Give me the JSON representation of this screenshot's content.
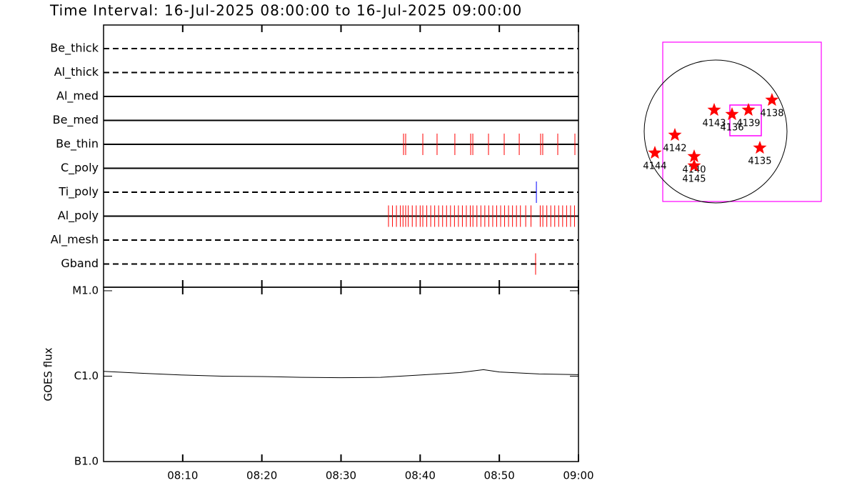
{
  "chart_data": [
    {
      "type": "timeline",
      "title": "Time Interval: 16-Jul-2025 08:00:00 to 16-Jul-2025 09:00:00",
      "xlim": [
        "08:00",
        "09:00"
      ],
      "rows": [
        {
          "name": "Be_thick",
          "line_style": "dashed",
          "color": "#ff0000",
          "events": []
        },
        {
          "name": "Al_thick",
          "line_style": "dashed",
          "color": "#ff0000",
          "events": []
        },
        {
          "name": "Al_med",
          "line_style": "solid",
          "color": "#ff0000",
          "events": []
        },
        {
          "name": "Be_med",
          "line_style": "solid",
          "color": "#ff0000",
          "events": []
        },
        {
          "name": "Be_thin",
          "line_style": "solid",
          "color": "#ff0000",
          "events": [
            "08:37:54",
            "08:38:10",
            "08:40:20",
            "08:42:08",
            "08:44:23",
            "08:46:23",
            "08:46:39",
            "08:48:38",
            "08:50:37",
            "08:52:31",
            "08:55:13",
            "08:55:29",
            "08:57:23",
            "08:59:33"
          ]
        },
        {
          "name": "C_poly",
          "line_style": "solid",
          "color": "#ff0000",
          "events": []
        },
        {
          "name": "Ti_poly",
          "line_style": "dashed",
          "color": "#0000ff",
          "events": [
            "08:54:41"
          ]
        },
        {
          "name": "Al_poly",
          "line_style": "solid",
          "color": "#ff0000",
          "events": [
            "08:36:00",
            "08:36:30",
            "08:37:00",
            "08:37:30",
            "08:37:50",
            "08:38:10",
            "08:38:30",
            "08:39:00",
            "08:39:30",
            "08:40:00",
            "08:40:20",
            "08:40:50",
            "08:41:20",
            "08:41:50",
            "08:42:20",
            "08:42:50",
            "08:43:20",
            "08:43:50",
            "08:44:20",
            "08:44:50",
            "08:45:20",
            "08:45:50",
            "08:46:20",
            "08:46:40",
            "08:47:10",
            "08:47:40",
            "08:48:10",
            "08:48:40",
            "08:49:10",
            "08:49:40",
            "08:50:10",
            "08:50:40",
            "08:51:10",
            "08:51:40",
            "08:52:10",
            "08:52:40",
            "08:53:20",
            "08:54:00",
            "08:55:10",
            "08:55:30",
            "08:56:00",
            "08:56:30",
            "08:57:00",
            "08:57:30",
            "08:58:00",
            "08:58:30",
            "08:59:00",
            "08:59:30"
          ]
        },
        {
          "name": "Al_mesh",
          "line_style": "dashed",
          "color": "#ff0000",
          "events": []
        },
        {
          "name": "Gband",
          "line_style": "dashed",
          "color": "#ff0000",
          "events": [
            "08:54:35"
          ]
        }
      ]
    },
    {
      "type": "line",
      "y_label": "GOES flux",
      "log_scale": true,
      "color": "#000000",
      "x": [
        "08:00",
        "08:05",
        "08:10",
        "08:15",
        "08:20",
        "08:25",
        "08:30",
        "08:35",
        "08:40",
        "08:45",
        "08:48",
        "08:50",
        "08:55",
        "09:00"
      ],
      "values": [
        1.14e-06,
        1.08e-06,
        1.03e-06,
        1e-06,
        9.9e-07,
        9.7e-07,
        9.6e-07,
        9.7e-07,
        1.03e-06,
        1.1e-06,
        1.19e-06,
        1.12e-06,
        1.06e-06,
        1.04e-06
      ],
      "xlim": [
        "08:00",
        "09:00"
      ],
      "xticks": [
        "08:10",
        "08:20",
        "08:30",
        "08:40",
        "08:50",
        "09:00"
      ],
      "ylim": [
        1e-07,
        1.1e-05
      ],
      "yticks": [
        {
          "value": 1e-07,
          "label": "B1.0"
        },
        {
          "value": 1e-06,
          "label": "C1.0"
        },
        {
          "value": 1e-05,
          "label": "M1.0"
        }
      ]
    },
    {
      "type": "scatter",
      "color": "#ff0000",
      "labels": [
        "4143",
        "4136",
        "4139",
        "4138",
        "4142",
        "4144",
        "4140",
        "4145",
        "4135"
      ],
      "x": [
        -19,
        221,
        442,
        758,
        -547,
        -816,
        -288,
        -288,
        595
      ],
      "y": [
        288,
        230,
        288,
        422,
        -48,
        -288,
        -336,
        -461,
        -221
      ],
      "xlim": [
        -710,
        1421
      ],
      "ylim": [
        -941,
        1200
      ]
    }
  ]
}
